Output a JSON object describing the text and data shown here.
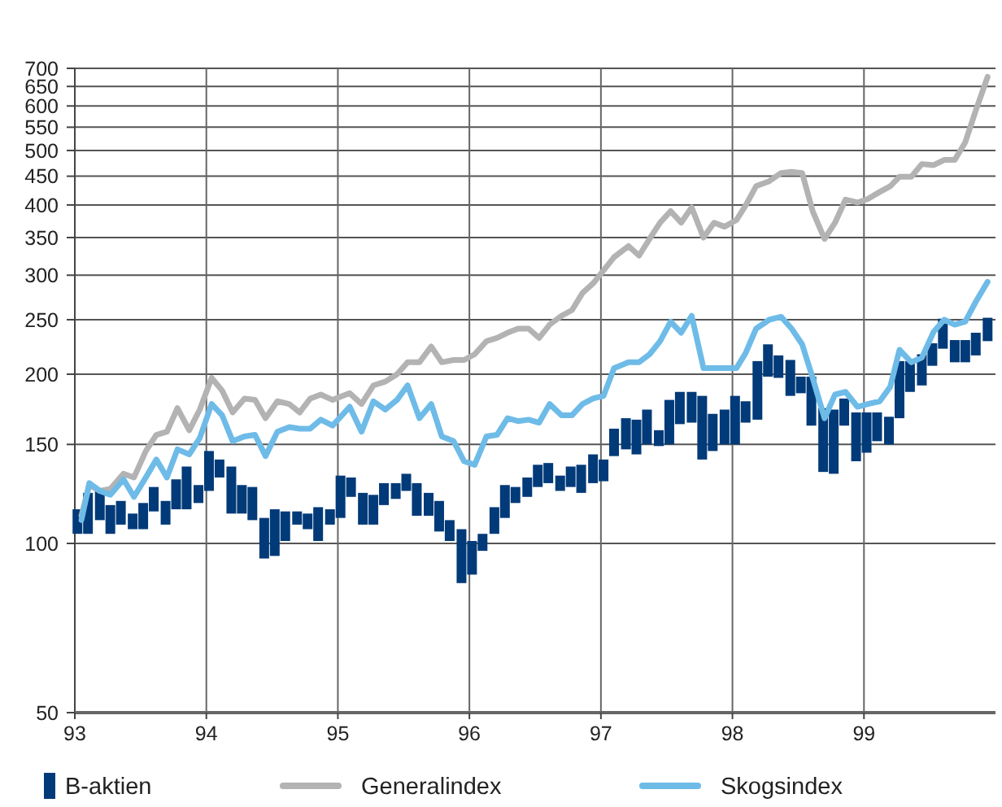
{
  "chart_data": {
    "type": "line",
    "log": true,
    "grid": true,
    "legend": "bottom",
    "xlim": [
      93,
      100
    ],
    "xticks": [
      93,
      94,
      95,
      96,
      97,
      98,
      99
    ],
    "ylim": [
      50,
      700
    ],
    "yticks": [
      50,
      100,
      150,
      200,
      250,
      300,
      350,
      400,
      450,
      500,
      550,
      600,
      650,
      700
    ],
    "series": [
      {
        "name": "B-aktien",
        "type": "bar",
        "color": "#003a78",
        "x": [
          93.02,
          93.1,
          93.19,
          93.27,
          93.35,
          93.44,
          93.52,
          93.6,
          93.69,
          93.77,
          93.85,
          93.94,
          94.02,
          94.1,
          94.19,
          94.27,
          94.35,
          94.44,
          94.52,
          94.6,
          94.69,
          94.77,
          94.85,
          94.94,
          95.02,
          95.1,
          95.19,
          95.27,
          95.35,
          95.44,
          95.52,
          95.6,
          95.69,
          95.77,
          95.85,
          95.94,
          96.02,
          96.1,
          96.19,
          96.27,
          96.35,
          96.44,
          96.52,
          96.6,
          96.69,
          96.77,
          96.85,
          96.94,
          97.02,
          97.1,
          97.19,
          97.27,
          97.35,
          97.44,
          97.52,
          97.6,
          97.69,
          97.77,
          97.85,
          97.94,
          98.02,
          98.1,
          98.19,
          98.27,
          98.35,
          98.44,
          98.52,
          98.6,
          98.69,
          98.77,
          98.85,
          98.94,
          99.02,
          99.1,
          99.19,
          99.27,
          99.35,
          99.44,
          99.52,
          99.6,
          99.69,
          99.77,
          99.85,
          99.94
        ],
        "base": [
          104,
          104,
          110,
          104,
          108,
          106,
          106,
          114,
          108,
          115,
          115,
          118,
          124,
          131,
          113,
          113,
          110,
          94,
          95,
          101,
          108,
          106,
          101,
          108,
          111,
          121,
          108,
          108,
          117,
          120,
          124,
          112,
          112,
          105,
          101,
          85,
          88,
          97,
          104,
          111,
          118,
          121,
          126,
          128,
          124,
          126,
          123,
          128,
          129,
          143,
          147,
          144,
          150,
          149,
          150,
          163,
          164,
          141,
          146,
          150,
          150,
          164,
          166,
          198,
          197,
          183,
          185,
          162,
          134,
          133,
          162,
          140,
          145,
          152,
          150,
          167,
          186,
          191,
          207,
          222,
          210,
          210,
          216,
          229
        ],
        "values": [
          11,
          19,
          15,
          13,
          11,
          7,
          12,
          12,
          11,
          15,
          22,
          9,
          22,
          10,
          24,
          14,
          16,
          17,
          20,
          13,
          6,
          7,
          15,
          7,
          21,
          10,
          15,
          14,
          11,
          8,
          9,
          16,
          11,
          14,
          9,
          21,
          13,
          7,
          12,
          16,
          8,
          10,
          12,
          11,
          8,
          11,
          15,
          16,
          12,
          17,
          20,
          22,
          23,
          10,
          30,
          23,
          22,
          42,
          24,
          23,
          33,
          15,
          45,
          28,
          19,
          29,
          13,
          36,
          40,
          40,
          19,
          31,
          26,
          19,
          18,
          44,
          25,
          26,
          20,
          29,
          20,
          20,
          21,
          23
        ]
      },
      {
        "name": "Generalindex",
        "color": "#b3b3b3",
        "x": [
          93.05,
          93.11,
          93.19,
          93.27,
          93.37,
          93.45,
          93.54,
          93.62,
          93.7,
          93.78,
          93.87,
          93.95,
          94.04,
          94.12,
          94.2,
          94.29,
          94.37,
          94.45,
          94.54,
          94.63,
          94.71,
          94.79,
          94.87,
          94.96,
          95.09,
          95.18,
          95.27,
          95.36,
          95.45,
          95.53,
          95.62,
          95.71,
          95.79,
          95.88,
          95.96,
          96.04,
          96.13,
          96.21,
          96.29,
          96.37,
          96.45,
          96.53,
          96.61,
          96.7,
          96.78,
          96.86,
          96.94,
          97.02,
          97.1,
          97.21,
          97.29,
          97.37,
          97.45,
          97.53,
          97.61,
          97.69,
          97.78,
          97.86,
          97.94,
          98.03,
          98.1,
          98.18,
          98.28,
          98.37,
          98.45,
          98.53,
          98.61,
          98.7,
          98.78,
          98.86,
          98.95,
          99.03,
          99.12,
          99.2,
          99.27,
          99.36,
          99.44,
          99.53,
          99.61,
          99.69,
          99.77,
          99.85,
          99.94
        ],
        "values": [
          112,
          127,
          124,
          125,
          133,
          131,
          146,
          156,
          158,
          174,
          159,
          173,
          197,
          187,
          171,
          181,
          180,
          167,
          179,
          177,
          171,
          181,
          184,
          180,
          185,
          177,
          191,
          194,
          200,
          210,
          210,
          224,
          210,
          212,
          212,
          217,
          229,
          232,
          237,
          241,
          241,
          232,
          245,
          254,
          260,
          279,
          290,
          306,
          323,
          338,
          325,
          348,
          372,
          390,
          372,
          396,
          350,
          372,
          366,
          376,
          399,
          432,
          441,
          456,
          458,
          456,
          390,
          348,
          372,
          409,
          404,
          410,
          422,
          432,
          449,
          449,
          473,
          471,
          481,
          481,
          517,
          589,
          676
        ]
      },
      {
        "name": "Skogsindex",
        "color": "#6ebbe8",
        "x": [
          93.05,
          93.11,
          93.19,
          93.27,
          93.37,
          93.45,
          93.54,
          93.62,
          93.7,
          93.78,
          93.87,
          93.95,
          94.04,
          94.12,
          94.2,
          94.29,
          94.37,
          94.45,
          94.54,
          94.63,
          94.71,
          94.79,
          94.87,
          94.96,
          95.09,
          95.18,
          95.27,
          95.36,
          95.45,
          95.53,
          95.62,
          95.71,
          95.79,
          95.88,
          95.96,
          96.04,
          96.13,
          96.21,
          96.29,
          96.37,
          96.45,
          96.53,
          96.61,
          96.7,
          96.78,
          96.86,
          96.94,
          97.02,
          97.1,
          97.21,
          97.29,
          97.37,
          97.45,
          97.53,
          97.61,
          97.69,
          97.78,
          97.86,
          97.94,
          98.03,
          98.1,
          98.18,
          98.28,
          98.37,
          98.45,
          98.53,
          98.61,
          98.7,
          98.78,
          98.86,
          98.95,
          99.03,
          99.12,
          99.2,
          99.27,
          99.36,
          99.44,
          99.53,
          99.61,
          99.69,
          99.77,
          99.85,
          99.94
        ],
        "values": [
          110,
          128,
          124,
          122,
          130,
          121,
          131,
          141,
          131,
          147,
          144,
          154,
          177,
          169,
          152,
          155,
          156,
          143,
          158,
          161,
          160,
          160,
          166,
          162,
          175,
          158,
          179,
          173,
          180,
          191,
          167,
          177,
          155,
          152,
          140,
          138,
          155,
          156,
          167,
          165,
          166,
          164,
          177,
          169,
          169,
          177,
          181,
          183,
          205,
          210,
          210,
          217,
          229,
          248,
          237,
          254,
          205,
          205,
          205,
          205,
          218,
          241,
          250,
          253,
          241,
          226,
          197,
          167,
          184,
          186,
          175,
          177,
          179,
          190,
          221,
          210,
          214,
          238,
          250,
          245,
          248,
          269,
          292
        ]
      }
    ]
  }
}
